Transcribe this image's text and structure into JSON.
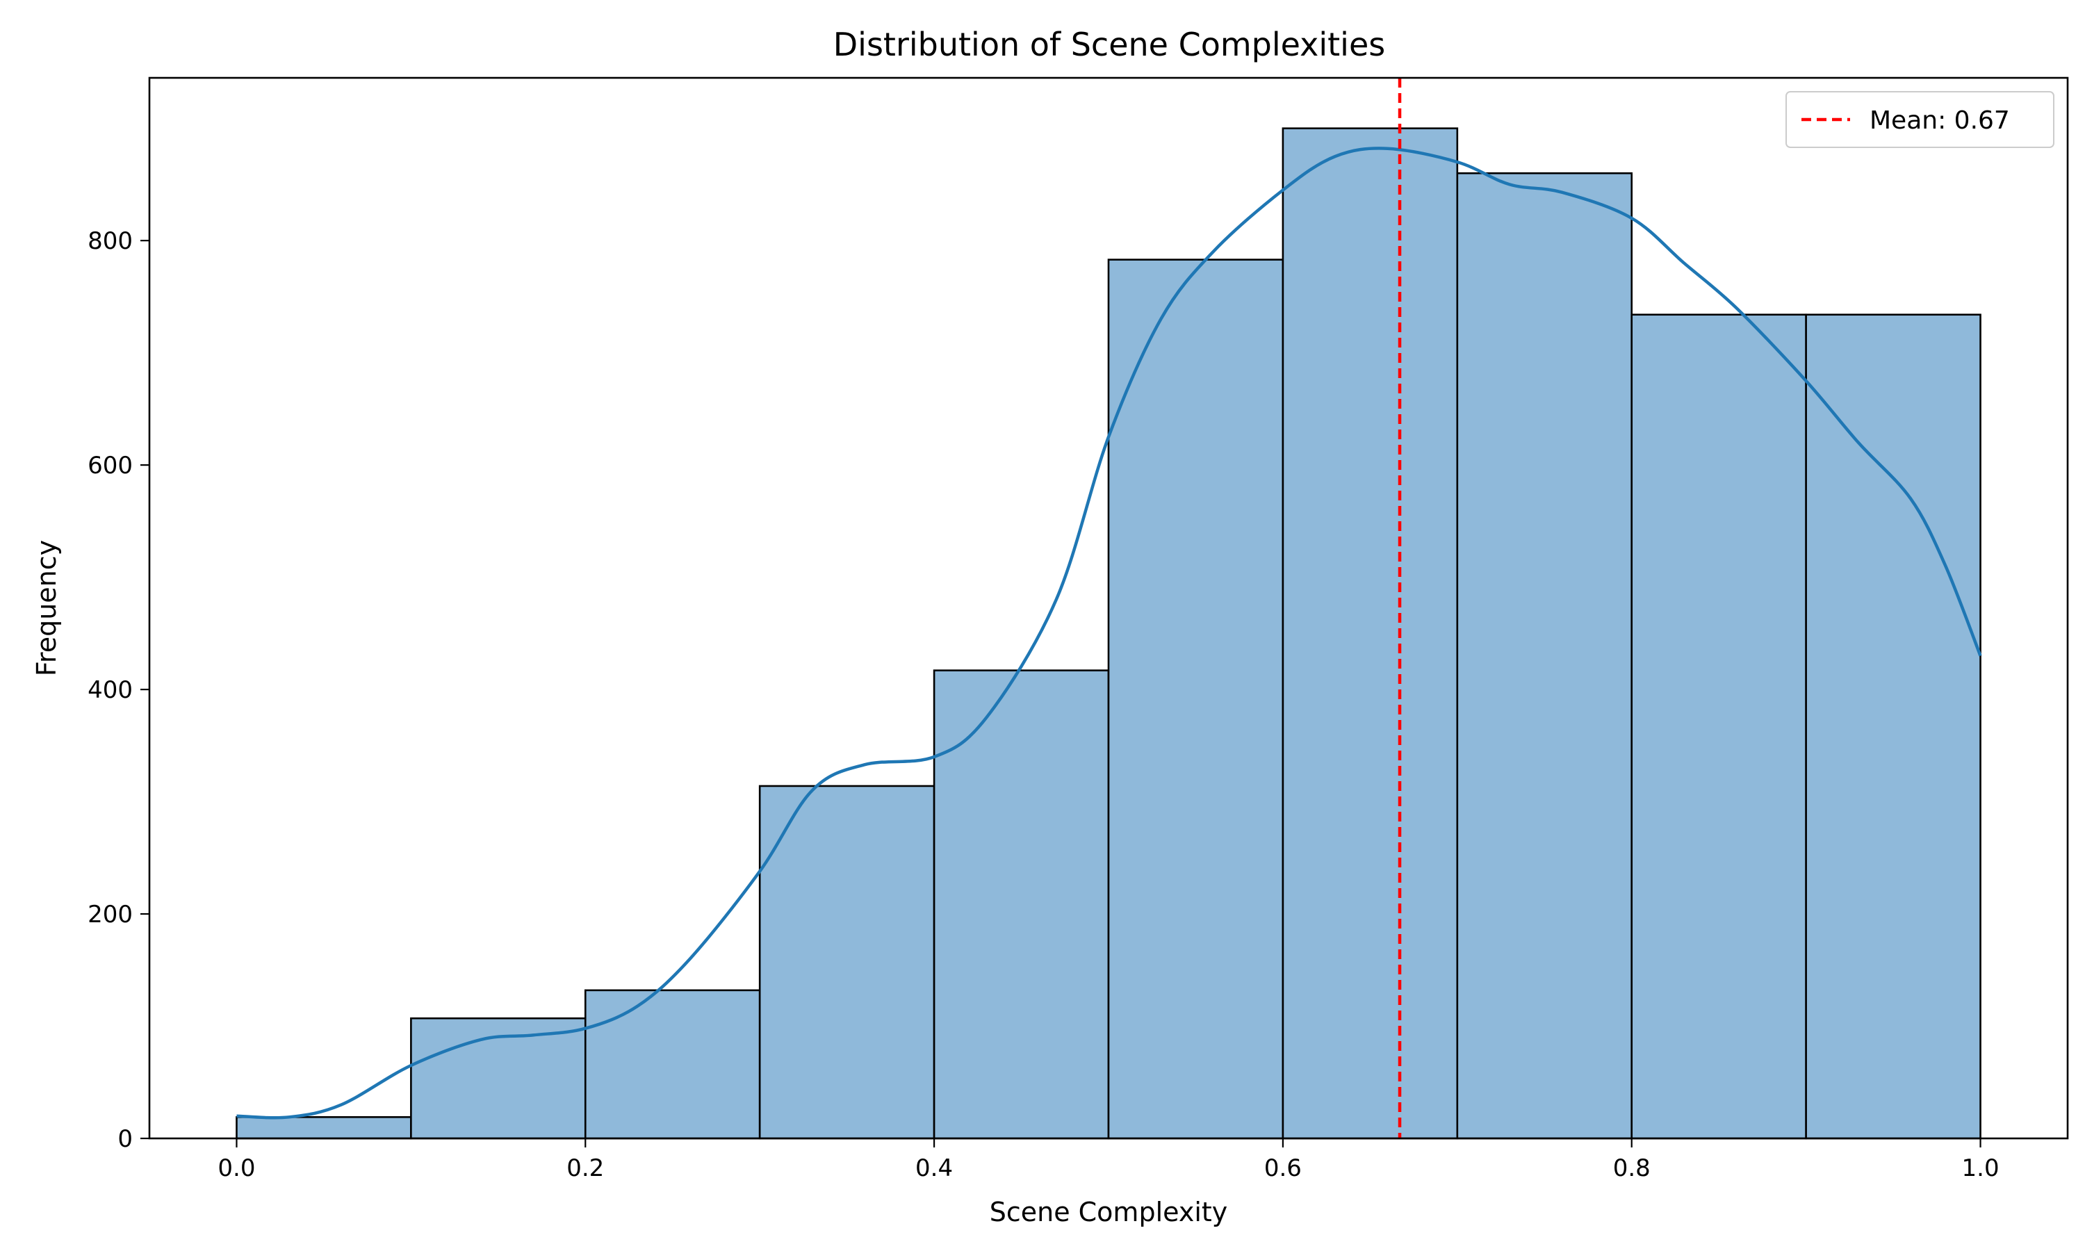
{
  "chart_data": {
    "type": "bar",
    "title": "Distribution of Scene Complexities",
    "xlabel": "Scene Complexity",
    "ylabel": "Frequency",
    "xlim": [
      -0.05,
      1.05
    ],
    "ylim": [
      0,
      945
    ],
    "xticks": [
      0.0,
      0.2,
      0.4,
      0.6,
      0.8,
      1.0
    ],
    "xtick_labels": [
      "0.0",
      "0.2",
      "0.4",
      "0.6",
      "0.8",
      "1.0"
    ],
    "yticks": [
      0,
      200,
      400,
      600,
      800
    ],
    "ytick_labels": [
      "0",
      "200",
      "400",
      "600",
      "800"
    ],
    "grid": false,
    "legend": "top-right",
    "bins": {
      "edges": [
        0.0,
        0.1,
        0.2,
        0.3,
        0.4,
        0.5,
        0.6,
        0.7,
        0.8,
        0.9,
        1.0
      ],
      "values": [
        19,
        107,
        132,
        314,
        417,
        783,
        900,
        860,
        734,
        734
      ]
    },
    "bar_color": "#8fb9da",
    "bar_edge_color": "#000000",
    "kde": {
      "color": "#1f77b4",
      "x": [
        0.0,
        0.03,
        0.06,
        0.1,
        0.14,
        0.17,
        0.2,
        0.23,
        0.26,
        0.3,
        0.33,
        0.36,
        0.4,
        0.43,
        0.47,
        0.5,
        0.53,
        0.56,
        0.6,
        0.63,
        0.66,
        0.7,
        0.73,
        0.76,
        0.8,
        0.83,
        0.86,
        0.9,
        0.93,
        0.96,
        0.98,
        1.0
      ],
      "y": [
        20,
        19,
        30,
        65,
        88,
        92,
        98,
        118,
        160,
        238,
        310,
        333,
        340,
        375,
        480,
        625,
        730,
        790,
        845,
        875,
        882,
        870,
        850,
        843,
        820,
        780,
        740,
        675,
        620,
        570,
        510,
        430
      ]
    },
    "mean": {
      "value": 0.667,
      "label": "Mean: 0.67",
      "color": "#ff0000"
    }
  }
}
